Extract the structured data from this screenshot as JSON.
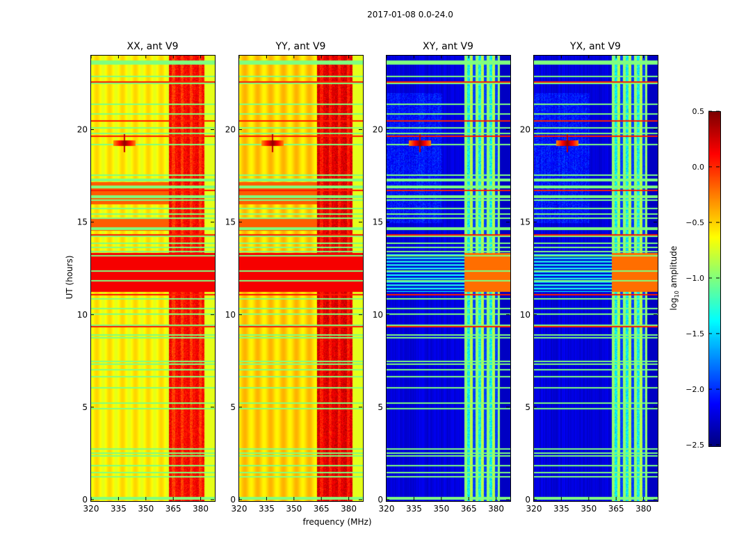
{
  "figure_title": "2017-01-08 0.0-24.0",
  "chart_data": [
    {
      "type": "heatmap",
      "title": "XX, ant V9",
      "xlabel": "",
      "ylabel": "UT (hours)",
      "xlim": [
        320,
        387
      ],
      "ylim": [
        0,
        24
      ],
      "xticks": [
        "320",
        "335",
        "350",
        "365",
        "380"
      ],
      "yticks": [
        "0",
        "5",
        "10",
        "15",
        "20"
      ],
      "base_log_amplitude": {
        "320-362 MHz": -0.6,
        "362-381 MHz": 0.0
      },
      "rfi_spike": {
        "freq_mhz": 338,
        "ut_hours": 19.3,
        "log_amplitude": 0.5
      }
    },
    {
      "type": "heatmap",
      "title": "YY, ant V9",
      "xlabel": "frequency (MHz)",
      "ylabel": "",
      "xlim": [
        320,
        387
      ],
      "ylim": [
        0,
        24
      ],
      "xticks": [
        "320",
        "335",
        "350",
        "365",
        "380"
      ],
      "yticks": [
        "0",
        "5",
        "10",
        "15",
        "20"
      ],
      "base_log_amplitude": {
        "320-362 MHz": -0.5,
        "362-381 MHz": 0.1
      },
      "rfi_spike": {
        "freq_mhz": 338,
        "ut_hours": 19.3,
        "log_amplitude": 0.5
      }
    },
    {
      "type": "heatmap",
      "title": "XY, ant V9",
      "xlabel": "",
      "ylabel": "",
      "xlim": [
        320,
        387
      ],
      "ylim": [
        0,
        24
      ],
      "xticks": [
        "320",
        "335",
        "350",
        "365",
        "380"
      ],
      "yticks": [
        "0",
        "5",
        "10",
        "15",
        "20"
      ],
      "base_log_amplitude": {
        "320-362 MHz": -2.3,
        "362-381 MHz": -1.1
      },
      "rfi_spike": {
        "freq_mhz": 338,
        "ut_hours": 19.3,
        "log_amplitude": 0.3
      }
    },
    {
      "type": "heatmap",
      "title": "YX, ant V9",
      "xlabel": "",
      "ylabel": "",
      "xlim": [
        320,
        387
      ],
      "ylim": [
        0,
        24
      ],
      "xticks": [
        "320",
        "335",
        "350",
        "365",
        "380"
      ],
      "yticks": [
        "0",
        "5",
        "10",
        "15",
        "20"
      ],
      "base_log_amplitude": {
        "320-362 MHz": -2.3,
        "362-381 MHz": -1.1
      },
      "rfi_spike": {
        "freq_mhz": 338,
        "ut_hours": 19.3,
        "log_amplitude": 0.3
      }
    }
  ],
  "colorbar": {
    "label_prefix": "log",
    "label_sub": "10",
    "label_suffix": " amplitude",
    "colormap": "jet",
    "range": [
      -2.5,
      0.5
    ],
    "ticks": [
      "0.5",
      "0.0",
      "−0.5",
      "−1.0",
      "−1.5",
      "−2.0",
      "−2.5"
    ]
  }
}
